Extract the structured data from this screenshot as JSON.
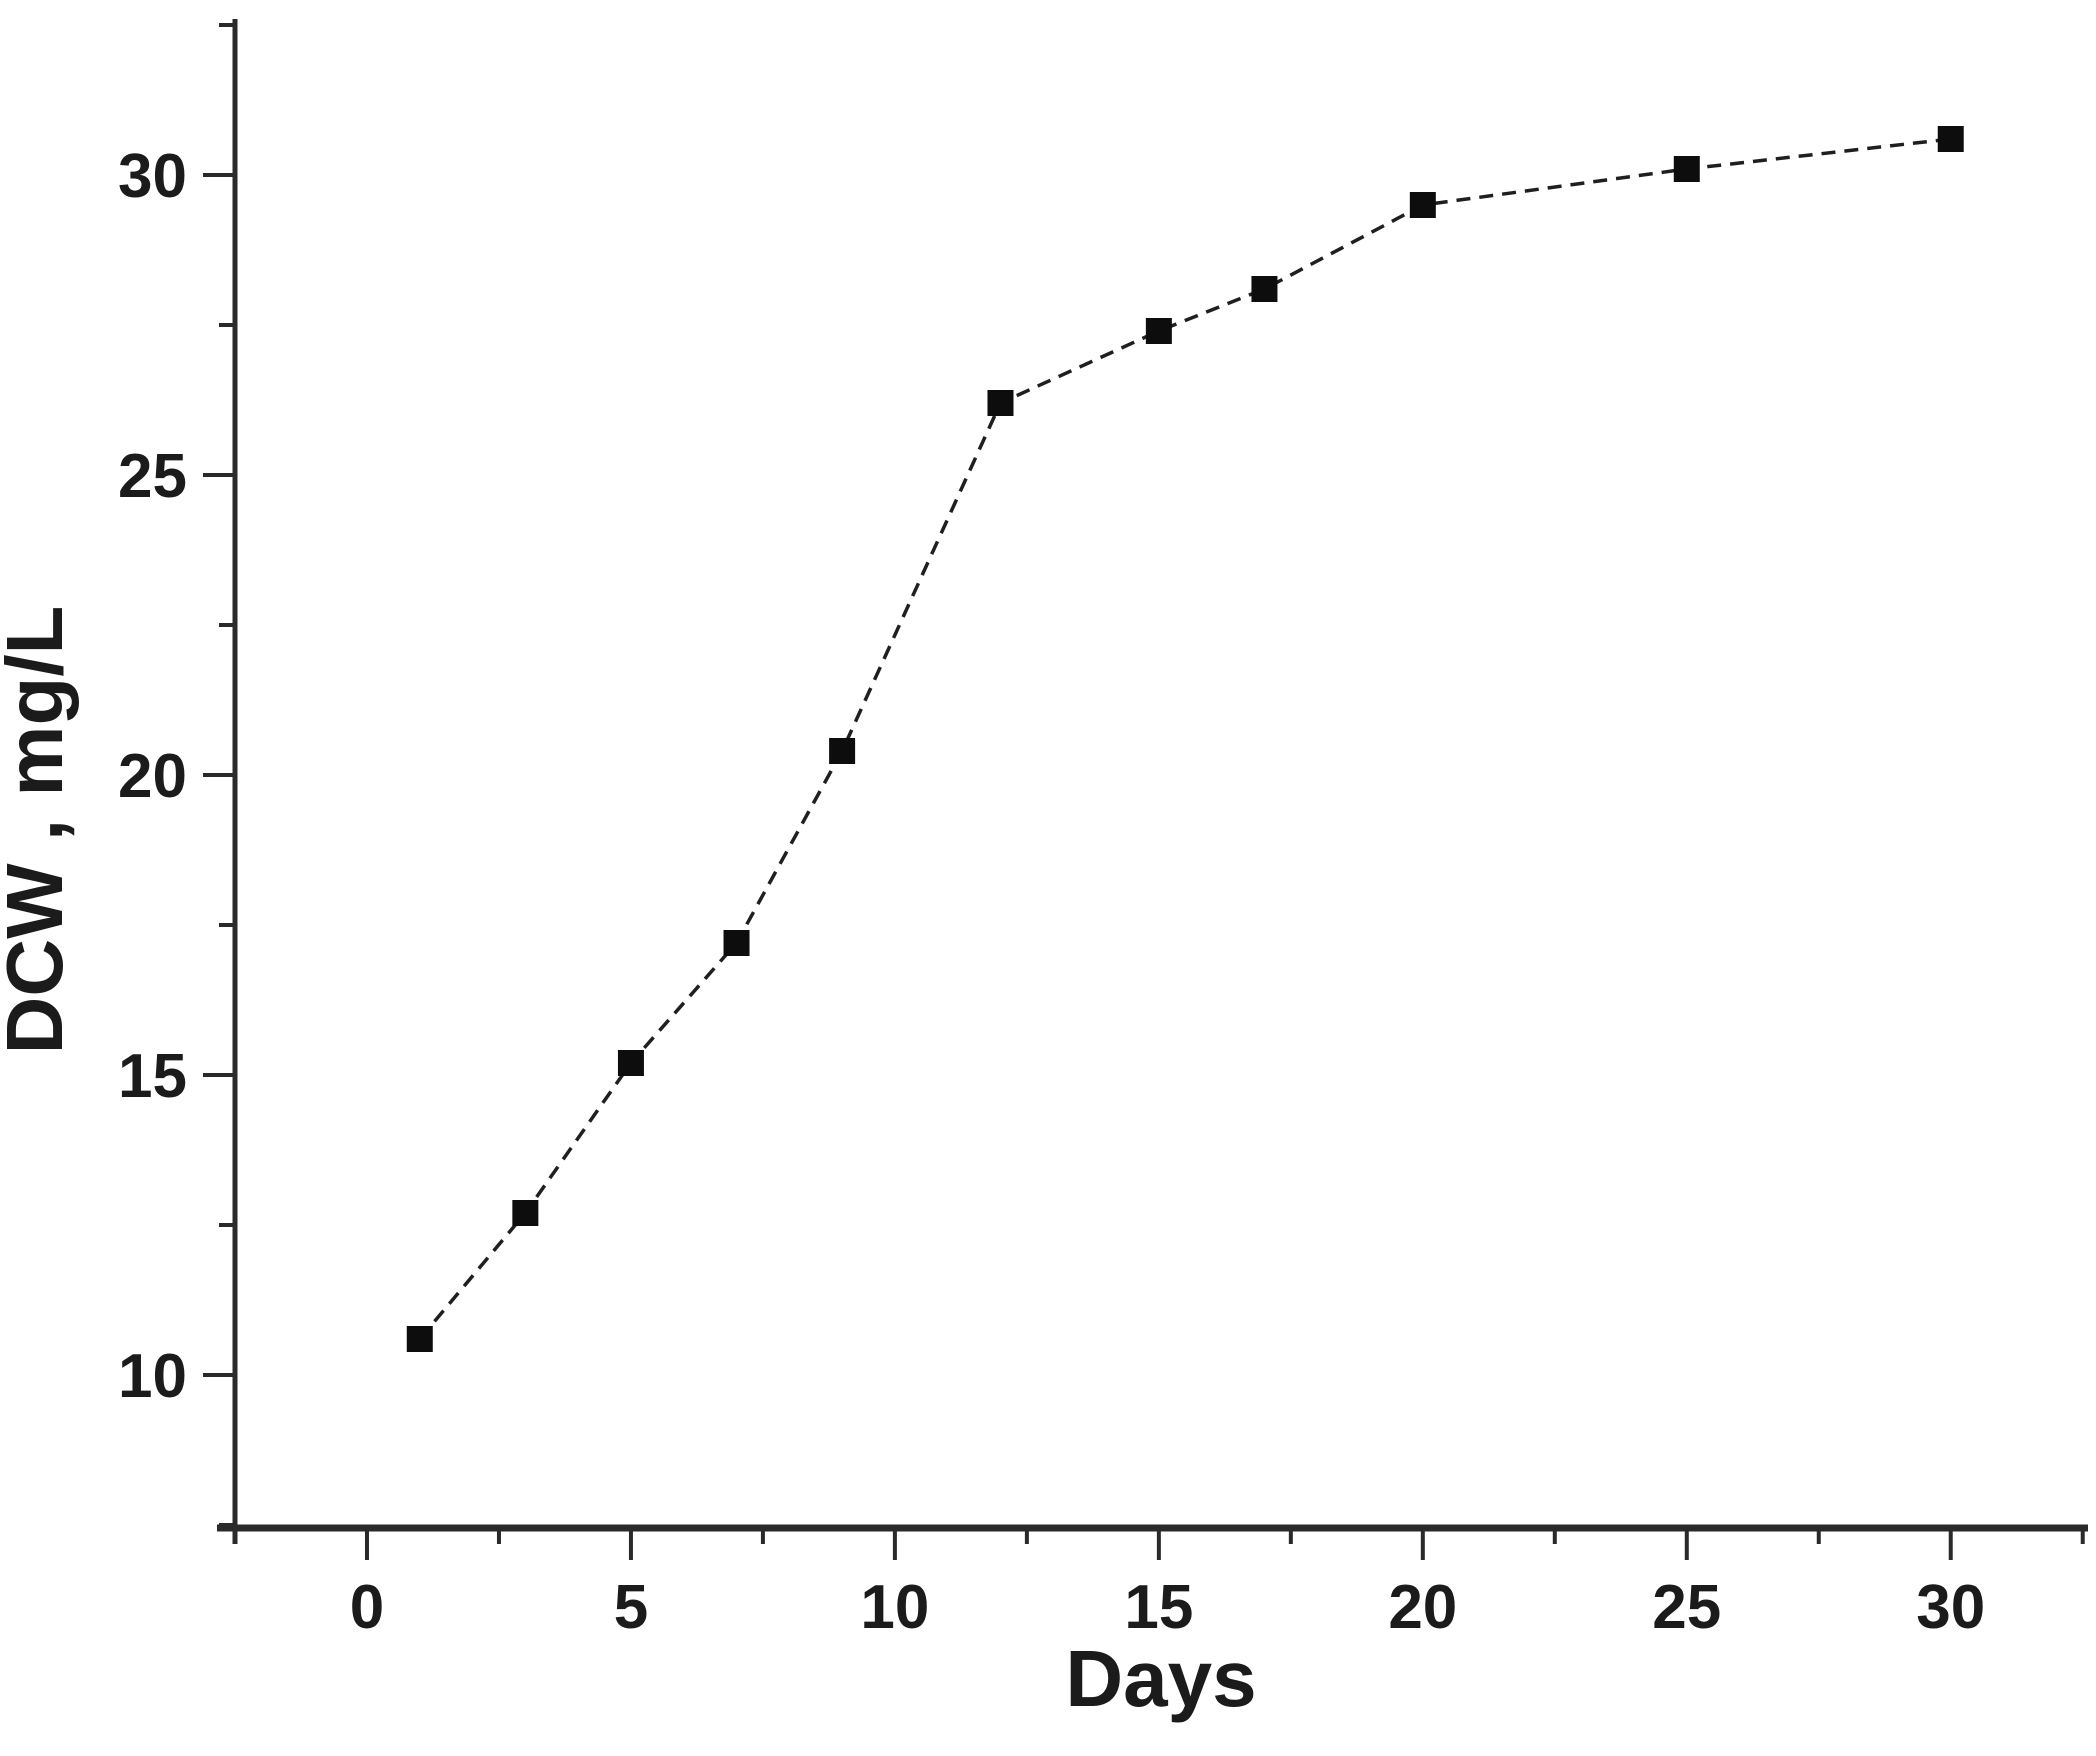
{
  "figure": {
    "xlabel": "Days",
    "ylabel": "DCW , mg/L"
  },
  "chart_data": {
    "type": "line",
    "title": "",
    "xlabel": "Days",
    "ylabel": "DCW , mg/L",
    "series": [
      {
        "name": "DCW",
        "x": [
          1,
          3,
          5,
          7,
          9,
          12,
          15,
          17,
          20,
          25,
          30
        ],
        "y": [
          10.6,
          12.7,
          15.2,
          17.2,
          20.4,
          26.2,
          27.4,
          28.1,
          29.5,
          30.1,
          30.6
        ]
      }
    ],
    "xlim": [
      -2.5,
      32.6
    ],
    "ylim": [
      7.45,
      32.6
    ],
    "x_major_ticks": [
      0,
      5,
      10,
      15,
      20,
      25,
      30
    ],
    "x_minor_ticks": [
      -2.5,
      2.5,
      7.5,
      12.5,
      17.5,
      22.5,
      27.5,
      32.5
    ],
    "y_major_ticks": [
      10,
      15,
      20,
      25,
      30
    ],
    "y_minor_ticks": [
      7.5,
      12.5,
      17.5,
      22.5,
      27.5,
      32.5
    ],
    "x_tick_labels": [
      "0",
      "5",
      "10",
      "15",
      "20",
      "25",
      "30"
    ],
    "y_tick_labels": [
      "10",
      "15",
      "20",
      "25",
      "30"
    ],
    "marker": "filled-square",
    "line_style": "dashed",
    "grid": false,
    "legend": null,
    "line_color": "#1f1f1f",
    "marker_color": "#0d0d0d",
    "axis_color": "#2a2a2a",
    "background": "#ffffff"
  }
}
